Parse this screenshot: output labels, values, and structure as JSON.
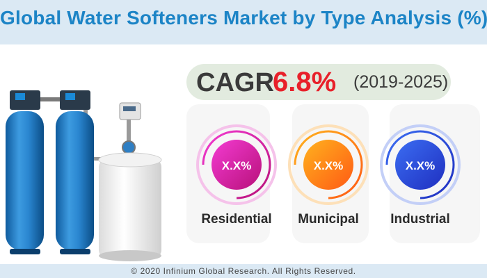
{
  "header": {
    "title": "Global Water Softeners Market by Type Analysis (%)"
  },
  "cagr": {
    "label": "CAGR",
    "value": "6.8%",
    "period": "(2019-2025)"
  },
  "segments": [
    {
      "label": "Residential",
      "value": "X.X%",
      "color_from": "#f33bd2",
      "color_to": "#b8117a"
    },
    {
      "label": "Municipal",
      "value": "X.X%",
      "color_from": "#ffb21e",
      "color_to": "#ff5a14"
    },
    {
      "label": "Industrial",
      "value": "X.X%",
      "color_from": "#3b6df2",
      "color_to": "#1f2fc0"
    }
  ],
  "footer": {
    "copyright": "© 2020 Infinium Global Research. All Rights Reserved."
  },
  "colors": {
    "title": "#1c84c6",
    "accent": "#e8202a",
    "band": "#dbe9f4"
  }
}
